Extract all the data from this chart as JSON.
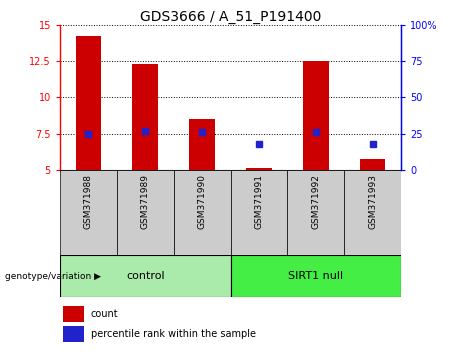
{
  "title": "GDS3666 / A_51_P191400",
  "samples": [
    "GSM371988",
    "GSM371989",
    "GSM371990",
    "GSM371991",
    "GSM371992",
    "GSM371993"
  ],
  "counts": [
    14.2,
    12.3,
    8.5,
    5.15,
    12.5,
    5.75
  ],
  "percentiles": [
    25,
    27,
    26,
    18,
    26,
    18
  ],
  "ylim_left": [
    5,
    15
  ],
  "ylim_right": [
    0,
    100
  ],
  "yticks_left": [
    5,
    7.5,
    10,
    12.5,
    15
  ],
  "yticks_right": [
    0,
    25,
    50,
    75,
    100
  ],
  "ytick_labels_right": [
    "0",
    "25",
    "50",
    "75",
    "100%"
  ],
  "bar_color": "#cc0000",
  "dot_color": "#2222cc",
  "bar_bottom": 5,
  "groups": [
    {
      "label": "control",
      "start": 0,
      "end": 3,
      "color": "#aaeaaa"
    },
    {
      "label": "SIRT1 null",
      "start": 3,
      "end": 6,
      "color": "#44ee44"
    }
  ],
  "group_label": "genotype/variation",
  "legend_count": "count",
  "legend_percentile": "percentile rank within the sample",
  "bar_width": 0.45,
  "sample_box_color": "#cccccc",
  "title_fontsize": 10,
  "tick_fontsize": 7,
  "label_fontsize": 7,
  "group_fontsize": 8
}
